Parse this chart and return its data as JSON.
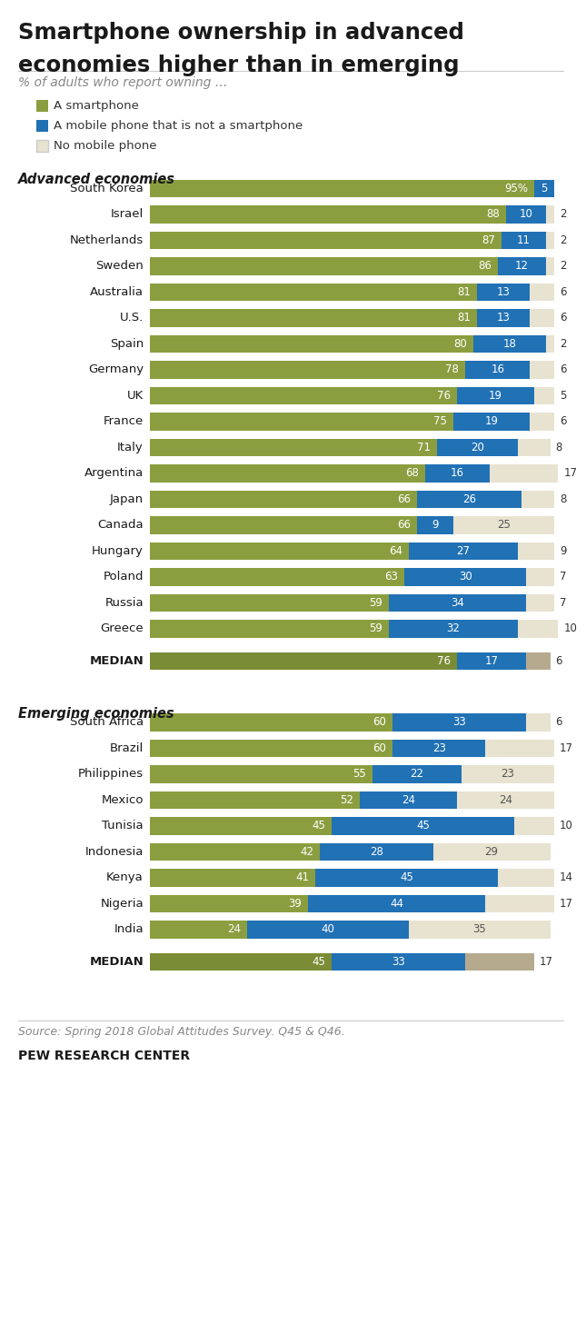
{
  "title_line1": "Smartphone ownership in advanced",
  "title_line2": "economies higher than in emerging",
  "subtitle": "% of adults who report owning …",
  "legend_items": [
    {
      "label": "A smartphone",
      "color": "#8b9e3f"
    },
    {
      "label": "A mobile phone that is not a smartphone",
      "color": "#2171b5"
    },
    {
      "label": "No mobile phone",
      "color": "#e8e2d0"
    }
  ],
  "advanced_label": "Advanced economies",
  "emerging_label": "Emerging economies",
  "advanced": [
    {
      "country": "South Korea",
      "smart": 95,
      "mobile": 5,
      "none": 0,
      "show_pct": true
    },
    {
      "country": "Israel",
      "smart": 88,
      "mobile": 10,
      "none": 2,
      "show_pct": false
    },
    {
      "country": "Netherlands",
      "smart": 87,
      "mobile": 11,
      "none": 2,
      "show_pct": false
    },
    {
      "country": "Sweden",
      "smart": 86,
      "mobile": 12,
      "none": 2,
      "show_pct": false
    },
    {
      "country": "Australia",
      "smart": 81,
      "mobile": 13,
      "none": 6,
      "show_pct": false
    },
    {
      "country": "U.S.",
      "smart": 81,
      "mobile": 13,
      "none": 6,
      "show_pct": false
    },
    {
      "country": "Spain",
      "smart": 80,
      "mobile": 18,
      "none": 2,
      "show_pct": false
    },
    {
      "country": "Germany",
      "smart": 78,
      "mobile": 16,
      "none": 6,
      "show_pct": false
    },
    {
      "country": "UK",
      "smart": 76,
      "mobile": 19,
      "none": 5,
      "show_pct": false
    },
    {
      "country": "France",
      "smart": 75,
      "mobile": 19,
      "none": 6,
      "show_pct": false
    },
    {
      "country": "Italy",
      "smart": 71,
      "mobile": 20,
      "none": 8,
      "show_pct": false
    },
    {
      "country": "Argentina",
      "smart": 68,
      "mobile": 16,
      "none": 17,
      "show_pct": false
    },
    {
      "country": "Japan",
      "smart": 66,
      "mobile": 26,
      "none": 8,
      "show_pct": false
    },
    {
      "country": "Canada",
      "smart": 66,
      "mobile": 9,
      "none": 25,
      "show_pct": false
    },
    {
      "country": "Hungary",
      "smart": 64,
      "mobile": 27,
      "none": 9,
      "show_pct": false
    },
    {
      "country": "Poland",
      "smart": 63,
      "mobile": 30,
      "none": 7,
      "show_pct": false
    },
    {
      "country": "Russia",
      "smart": 59,
      "mobile": 34,
      "none": 7,
      "show_pct": false
    },
    {
      "country": "Greece",
      "smart": 59,
      "mobile": 32,
      "none": 10,
      "show_pct": false
    },
    {
      "country": "MEDIAN",
      "smart": 76,
      "mobile": 17,
      "none": 6,
      "show_pct": false,
      "is_median": true
    }
  ],
  "emerging": [
    {
      "country": "South Africa",
      "smart": 60,
      "mobile": 33,
      "none": 6,
      "show_pct": false
    },
    {
      "country": "Brazil",
      "smart": 60,
      "mobile": 23,
      "none": 17,
      "show_pct": false
    },
    {
      "country": "Philippines",
      "smart": 55,
      "mobile": 22,
      "none": 23,
      "show_pct": false
    },
    {
      "country": "Mexico",
      "smart": 52,
      "mobile": 24,
      "none": 24,
      "show_pct": false
    },
    {
      "country": "Tunisia",
      "smart": 45,
      "mobile": 45,
      "none": 10,
      "show_pct": false
    },
    {
      "country": "Indonesia",
      "smart": 42,
      "mobile": 28,
      "none": 29,
      "show_pct": false
    },
    {
      "country": "Kenya",
      "smart": 41,
      "mobile": 45,
      "none": 14,
      "show_pct": false
    },
    {
      "country": "Nigeria",
      "smart": 39,
      "mobile": 44,
      "none": 17,
      "show_pct": false
    },
    {
      "country": "India",
      "smart": 24,
      "mobile": 40,
      "none": 35,
      "show_pct": false
    },
    {
      "country": "MEDIAN",
      "smart": 45,
      "mobile": 33,
      "none": 17,
      "show_pct": false,
      "is_median": true
    }
  ],
  "colors": {
    "smart": "#8b9e3f",
    "smart_median": "#7a8c35",
    "mobile": "#2171b5",
    "none": "#e8e2d0",
    "none_median": "#b5a98e"
  },
  "source": "Source: Spring 2018 Global Attitudes Survey. Q45 & Q46.",
  "attribution": "PEW RESEARCH CENTER",
  "bg": "#ffffff"
}
